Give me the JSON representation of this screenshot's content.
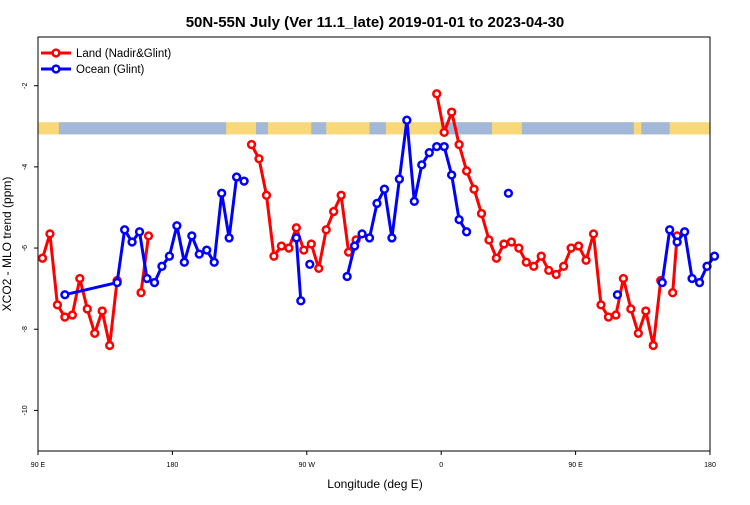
{
  "chart_data": {
    "type": "line",
    "title": "50N-55N July (Ver 11.1_late)   2019-01-01 to 2023-04-30",
    "xlabel": "Longitude (deg E)",
    "ylabel": "XCO2 - MLO trend (ppm)",
    "x_ticks": [
      {
        "value": 90,
        "label": "90 E"
      },
      {
        "value": 180,
        "label": "180"
      },
      {
        "value": 270,
        "label": "90 W"
      },
      {
        "value": 360,
        "label": "0"
      },
      {
        "value": 450,
        "label": "90 E"
      },
      {
        "value": 540,
        "label": "180"
      }
    ],
    "y_ticks": [
      -10,
      -8,
      -6,
      -4,
      -2
    ],
    "xlim": [
      90,
      540
    ],
    "ylim": [
      -11,
      -0.8
    ],
    "colors": {
      "land": "#ff0000",
      "ocean": "#0000ff",
      "land_band": "#f8d878",
      "ocean_band": "#a3b8d8"
    },
    "legend_position": "top-left",
    "series": [
      {
        "name": "Land (Nadir&Glint)",
        "color": "#ff0000",
        "points": [
          [
            93,
            -6.25
          ],
          [
            98,
            -5.65
          ],
          [
            103,
            -7.4
          ],
          [
            108,
            -7.7
          ],
          [
            113,
            -7.65
          ],
          [
            118,
            -6.75
          ],
          [
            123,
            -7.5
          ],
          [
            128,
            -8.1
          ],
          [
            133,
            -7.55
          ],
          [
            138,
            -8.4
          ],
          [
            143,
            -6.8
          ],
          [
            null,
            null
          ],
          [
            159,
            -7.1
          ],
          [
            164,
            -5.7
          ],
          [
            null,
            null
          ],
          [
            233,
            -3.45
          ],
          [
            238,
            -3.8
          ],
          [
            243,
            -4.7
          ],
          [
            248,
            -6.2
          ],
          [
            253,
            -5.95
          ],
          [
            258,
            -6.0
          ],
          [
            263,
            -5.5
          ],
          [
            268,
            -6.05
          ],
          [
            273,
            -5.9
          ],
          [
            278,
            -6.5
          ],
          [
            283,
            -5.55
          ],
          [
            288,
            -5.1
          ],
          [
            293,
            -4.7
          ],
          [
            298,
            -6.1
          ],
          [
            303,
            -5.8
          ],
          [
            null,
            null
          ],
          [
            357,
            -2.2
          ],
          [
            362,
            -3.15
          ],
          [
            367,
            -2.65
          ],
          [
            372,
            -3.45
          ],
          [
            377,
            -4.1
          ],
          [
            382,
            -4.55
          ],
          [
            387,
            -5.15
          ],
          [
            392,
            -5.8
          ],
          [
            397,
            -6.25
          ],
          [
            402,
            -5.9
          ],
          [
            407,
            -5.85
          ],
          [
            412,
            -6.0
          ],
          [
            417,
            -6.35
          ],
          [
            422,
            -6.45
          ],
          [
            427,
            -6.2
          ],
          [
            432,
            -6.55
          ],
          [
            437,
            -6.65
          ],
          [
            442,
            -6.45
          ],
          [
            447,
            -6.0
          ],
          [
            452,
            -5.95
          ],
          [
            457,
            -6.3
          ],
          [
            462,
            -5.65
          ],
          [
            467,
            -7.4
          ],
          [
            472,
            -7.7
          ],
          [
            477,
            -7.65
          ],
          [
            482,
            -6.75
          ],
          [
            487,
            -7.5
          ],
          [
            492,
            -8.1
          ],
          [
            497,
            -7.55
          ],
          [
            502,
            -8.4
          ],
          [
            507,
            -6.8
          ],
          [
            null,
            null
          ],
          [
            515,
            -7.1
          ],
          [
            518,
            -5.7
          ]
        ]
      },
      {
        "name": "Ocean (Glint)",
        "color": "#0000ff",
        "points": [
          [
            108,
            -7.15
          ],
          [
            143,
            -6.85
          ],
          [
            148,
            -5.55
          ],
          [
            153,
            -5.85
          ],
          [
            158,
            -5.6
          ],
          [
            163,
            -6.75
          ],
          [
            168,
            -6.85
          ],
          [
            173,
            -6.45
          ],
          [
            178,
            -6.2
          ],
          [
            183,
            -5.45
          ],
          [
            188,
            -6.35
          ],
          [
            193,
            -5.7
          ],
          [
            198,
            -6.15
          ],
          [
            203,
            -6.05
          ],
          [
            208,
            -6.35
          ],
          [
            213,
            -4.65
          ],
          [
            218,
            -5.75
          ],
          [
            223,
            -4.25
          ],
          [
            228,
            -4.35
          ],
          [
            null,
            null
          ],
          [
            263,
            -5.75
          ],
          [
            266,
            -7.3
          ],
          [
            null,
            null
          ],
          [
            272,
            -6.4
          ],
          [
            null,
            null
          ],
          [
            297,
            -6.7
          ],
          [
            302,
            -5.95
          ],
          [
            307,
            -5.65
          ],
          [
            312,
            -5.75
          ],
          [
            317,
            -4.9
          ],
          [
            322,
            -4.55
          ],
          [
            327,
            -5.75
          ],
          [
            332,
            -4.3
          ],
          [
            337,
            -2.85
          ],
          [
            342,
            -4.85
          ],
          [
            347,
            -3.95
          ],
          [
            352,
            -3.65
          ],
          [
            357,
            -3.5
          ],
          [
            362,
            -3.5
          ],
          [
            367,
            -4.2
          ],
          [
            372,
            -5.3
          ],
          [
            377,
            -5.6
          ],
          [
            null,
            null
          ],
          [
            405,
            -4.65
          ],
          [
            null,
            null
          ],
          [
            478,
            -7.15
          ],
          [
            null,
            null
          ],
          [
            508,
            -6.85
          ],
          [
            513,
            -5.55
          ],
          [
            518,
            -5.85
          ],
          [
            523,
            -5.6
          ],
          [
            528,
            -6.75
          ],
          [
            533,
            -6.85
          ],
          [
            538,
            -6.45
          ],
          [
            543,
            -6.2
          ]
        ]
      }
    ]
  }
}
